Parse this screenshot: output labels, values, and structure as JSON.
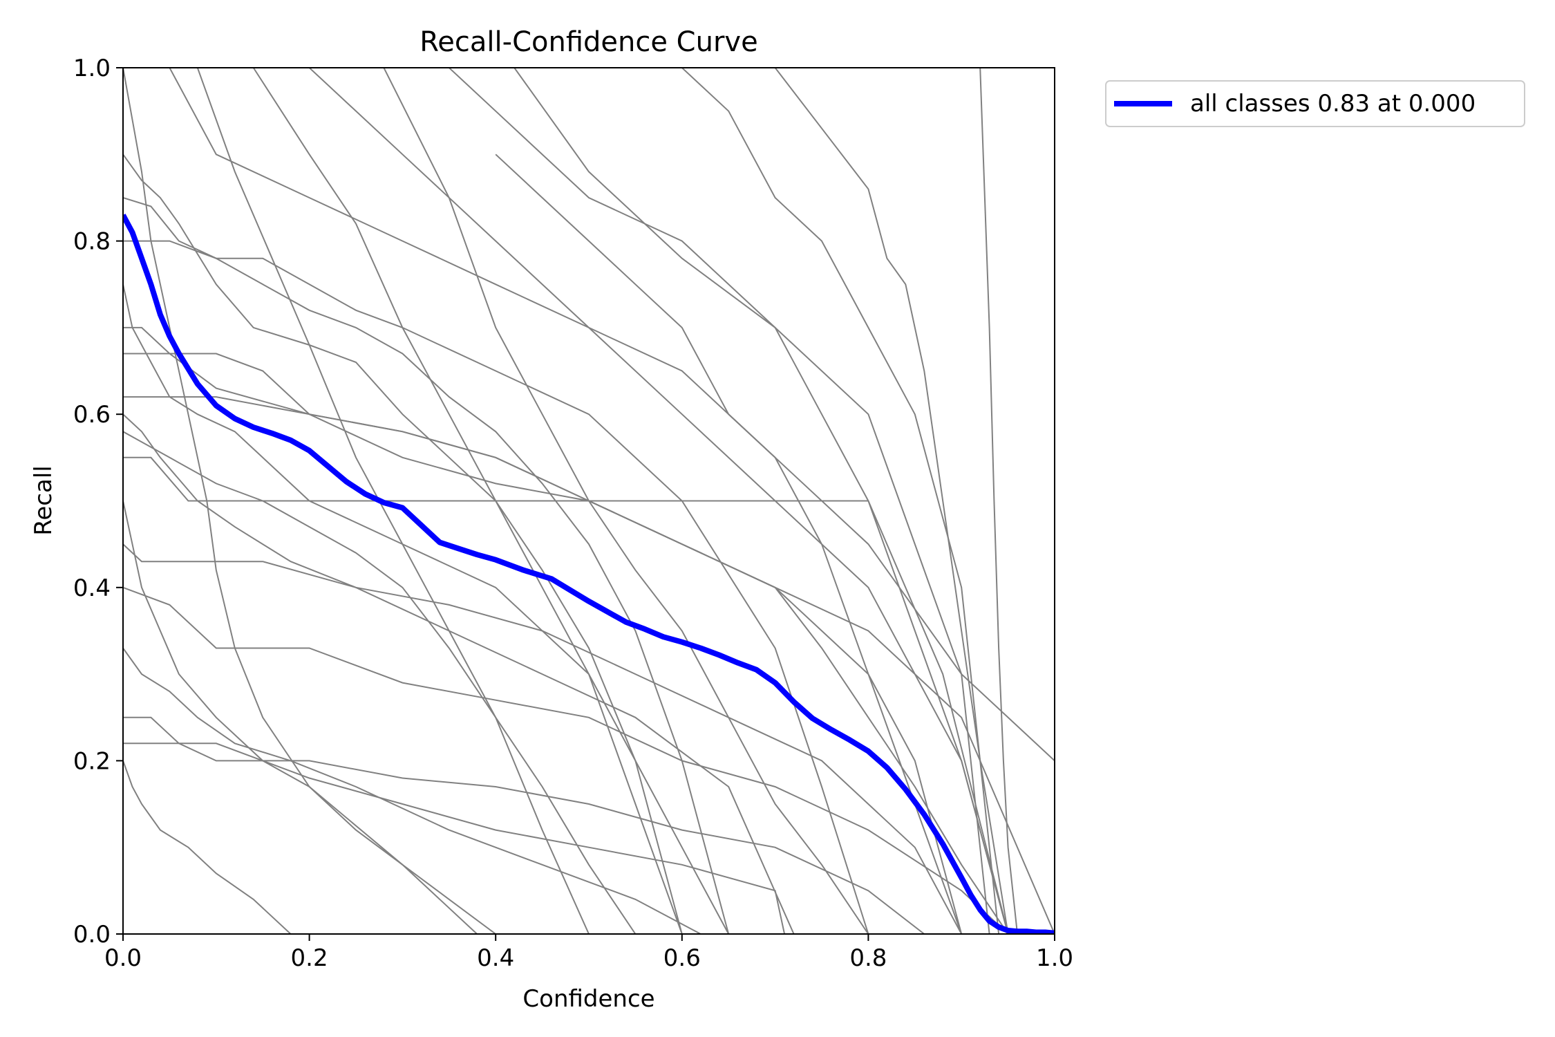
{
  "chart_data": {
    "type": "line",
    "title": "Recall-Confidence Curve",
    "xlabel": "Confidence",
    "ylabel": "Recall",
    "xlim": [
      0.0,
      1.0
    ],
    "ylim": [
      0.0,
      1.0
    ],
    "x_ticks": [
      "0.0",
      "0.2",
      "0.4",
      "0.6",
      "0.8",
      "1.0"
    ],
    "y_ticks": [
      "0.0",
      "0.2",
      "0.4",
      "0.6",
      "0.8",
      "1.0"
    ],
    "grid": false,
    "legend_position": "outside-top-right",
    "legend": [
      {
        "label": "all classes 0.83 at 0.000",
        "color": "#0000ff"
      }
    ],
    "colors": {
      "classes": "#808080",
      "all": "#0000ff"
    },
    "series": [
      {
        "name": "all classes 0.83 at 0.000",
        "color": "#0000ff",
        "x": [
          0.0,
          0.01,
          0.02,
          0.03,
          0.04,
          0.05,
          0.06,
          0.08,
          0.1,
          0.12,
          0.14,
          0.16,
          0.18,
          0.2,
          0.22,
          0.24,
          0.26,
          0.28,
          0.3,
          0.32,
          0.34,
          0.36,
          0.38,
          0.4,
          0.43,
          0.46,
          0.48,
          0.5,
          0.52,
          0.54,
          0.56,
          0.58,
          0.6,
          0.62,
          0.64,
          0.66,
          0.68,
          0.7,
          0.72,
          0.74,
          0.76,
          0.78,
          0.8,
          0.82,
          0.84,
          0.86,
          0.88,
          0.9,
          0.91,
          0.92,
          0.93,
          0.94,
          0.95,
          0.96,
          0.97,
          0.98,
          0.99,
          1.0
        ],
        "y": [
          0.83,
          0.81,
          0.78,
          0.75,
          0.715,
          0.69,
          0.67,
          0.635,
          0.61,
          0.595,
          0.585,
          0.578,
          0.57,
          0.558,
          0.54,
          0.522,
          0.508,
          0.498,
          0.492,
          0.472,
          0.452,
          0.445,
          0.438,
          0.432,
          0.42,
          0.41,
          0.397,
          0.384,
          0.372,
          0.36,
          0.352,
          0.343,
          0.337,
          0.33,
          0.322,
          0.313,
          0.305,
          0.29,
          0.268,
          0.249,
          0.236,
          0.224,
          0.211,
          0.192,
          0.167,
          0.138,
          0.104,
          0.065,
          0.045,
          0.028,
          0.015,
          0.008,
          0.004,
          0.003,
          0.003,
          0.002,
          0.002,
          0.001
        ]
      },
      {
        "x": [
          0.0,
          0.01,
          0.02,
          0.03,
          0.05,
          0.07,
          0.09,
          0.1,
          0.12,
          0.15,
          0.2,
          0.3,
          0.38,
          0.5,
          0.6
        ],
        "y": [
          1.0,
          0.94,
          0.88,
          0.8,
          0.7,
          0.6,
          0.5,
          0.42,
          0.33,
          0.25,
          0.17,
          0.08,
          0.0,
          0.0,
          0.0
        ]
      },
      {
        "x": [
          0.0,
          0.02,
          0.04,
          0.06,
          0.1,
          0.14,
          0.2,
          0.25,
          0.3,
          0.35,
          0.4,
          0.45,
          0.5,
          0.55,
          0.6
        ],
        "y": [
          0.9,
          0.87,
          0.85,
          0.82,
          0.75,
          0.7,
          0.68,
          0.66,
          0.6,
          0.55,
          0.5,
          0.4,
          0.3,
          0.15,
          0.0
        ]
      },
      {
        "x": [
          0.0,
          0.03,
          0.06,
          0.1,
          0.15,
          0.2,
          0.25,
          0.3,
          0.35,
          0.4,
          0.45,
          0.5,
          0.55,
          0.6,
          0.65
        ],
        "y": [
          0.85,
          0.84,
          0.8,
          0.78,
          0.75,
          0.72,
          0.7,
          0.67,
          0.62,
          0.58,
          0.52,
          0.45,
          0.35,
          0.2,
          0.0
        ]
      },
      {
        "x": [
          0.0,
          0.05,
          0.1,
          0.15,
          0.2,
          0.25,
          0.3,
          0.4,
          0.5,
          0.6,
          0.7,
          0.75,
          0.8
        ],
        "y": [
          0.8,
          0.8,
          0.78,
          0.78,
          0.75,
          0.72,
          0.7,
          0.65,
          0.6,
          0.5,
          0.33,
          0.17,
          0.0
        ]
      },
      {
        "x": [
          0.0,
          0.01,
          0.03,
          0.05,
          0.08,
          0.12,
          0.2,
          0.3,
          0.4,
          0.5,
          0.55,
          0.6
        ],
        "y": [
          0.75,
          0.7,
          0.66,
          0.62,
          0.6,
          0.58,
          0.5,
          0.45,
          0.4,
          0.3,
          0.2,
          0.0
        ]
      },
      {
        "x": [
          0.0,
          0.02,
          0.05,
          0.1,
          0.15,
          0.2,
          0.3,
          0.4,
          0.5,
          0.6,
          0.7,
          0.8,
          0.85,
          0.9
        ],
        "y": [
          0.7,
          0.7,
          0.67,
          0.67,
          0.65,
          0.6,
          0.58,
          0.55,
          0.5,
          0.45,
          0.4,
          0.3,
          0.2,
          0.0
        ]
      },
      {
        "x": [
          0.0,
          0.05,
          0.1,
          0.2,
          0.3,
          0.4,
          0.5,
          0.6,
          0.7,
          0.75,
          0.8,
          0.85,
          0.9,
          0.95
        ],
        "y": [
          0.67,
          0.67,
          0.63,
          0.6,
          0.55,
          0.52,
          0.5,
          0.45,
          0.4,
          0.33,
          0.25,
          0.17,
          0.08,
          0.0
        ]
      },
      {
        "x": [
          0.0,
          0.02,
          0.04,
          0.08,
          0.12,
          0.18,
          0.25,
          0.35,
          0.45,
          0.55,
          0.65,
          0.72
        ],
        "y": [
          0.6,
          0.58,
          0.55,
          0.5,
          0.47,
          0.43,
          0.4,
          0.35,
          0.3,
          0.25,
          0.17,
          0.0
        ]
      },
      {
        "x": [
          0.0,
          0.03,
          0.07,
          0.12,
          0.2,
          0.3,
          0.4,
          0.5,
          0.6,
          0.7,
          0.8,
          0.88,
          0.95
        ],
        "y": [
          0.55,
          0.55,
          0.5,
          0.5,
          0.5,
          0.5,
          0.5,
          0.5,
          0.5,
          0.5,
          0.5,
          0.3,
          0.0
        ]
      },
      {
        "x": [
          0.0,
          0.01,
          0.02,
          0.04,
          0.06,
          0.1,
          0.15,
          0.2,
          0.25,
          0.3,
          0.35,
          0.4
        ],
        "y": [
          0.5,
          0.45,
          0.4,
          0.35,
          0.3,
          0.25,
          0.2,
          0.17,
          0.12,
          0.08,
          0.04,
          0.0
        ]
      },
      {
        "x": [
          0.0,
          0.02,
          0.05,
          0.1,
          0.15,
          0.25,
          0.35,
          0.45,
          0.55,
          0.65,
          0.75,
          0.85,
          0.9
        ],
        "y": [
          0.45,
          0.43,
          0.43,
          0.43,
          0.43,
          0.4,
          0.38,
          0.35,
          0.3,
          0.25,
          0.2,
          0.1,
          0.0
        ]
      },
      {
        "x": [
          0.0,
          0.05,
          0.1,
          0.2,
          0.3,
          0.4,
          0.5,
          0.6,
          0.7,
          0.8,
          0.9,
          0.95
        ],
        "y": [
          0.4,
          0.38,
          0.33,
          0.33,
          0.29,
          0.27,
          0.25,
          0.2,
          0.17,
          0.12,
          0.05,
          0.0
        ]
      },
      {
        "x": [
          0.0,
          0.02,
          0.05,
          0.08,
          0.12,
          0.18,
          0.25,
          0.35,
          0.45,
          0.55,
          0.62
        ],
        "y": [
          0.33,
          0.3,
          0.28,
          0.25,
          0.22,
          0.2,
          0.17,
          0.12,
          0.08,
          0.04,
          0.0
        ]
      },
      {
        "x": [
          0.0,
          0.03,
          0.06,
          0.1,
          0.2,
          0.3,
          0.4,
          0.5,
          0.6,
          0.7,
          0.8,
          0.86
        ],
        "y": [
          0.25,
          0.25,
          0.22,
          0.2,
          0.2,
          0.18,
          0.17,
          0.15,
          0.12,
          0.1,
          0.05,
          0.0
        ]
      },
      {
        "x": [
          0.0,
          0.05,
          0.1,
          0.2,
          0.3,
          0.4,
          0.5,
          0.6,
          0.7,
          0.71
        ],
        "y": [
          0.22,
          0.22,
          0.22,
          0.18,
          0.15,
          0.12,
          0.1,
          0.08,
          0.05,
          0.0
        ]
      },
      {
        "x": [
          0.0,
          0.01,
          0.02,
          0.04,
          0.07,
          0.1,
          0.14,
          0.18
        ],
        "y": [
          0.2,
          0.17,
          0.15,
          0.12,
          0.1,
          0.07,
          0.04,
          0.0
        ]
      },
      {
        "x": [
          0.05,
          0.1,
          0.2,
          0.3,
          0.4,
          0.5,
          0.6,
          0.7,
          0.8,
          0.9,
          1.0
        ],
        "y": [
          1.0,
          0.9,
          0.85,
          0.8,
          0.75,
          0.7,
          0.65,
          0.55,
          0.45,
          0.3,
          0.2
        ]
      },
      {
        "x": [
          0.2,
          0.3,
          0.4,
          0.5,
          0.6,
          0.7,
          0.8,
          0.9,
          0.95
        ],
        "y": [
          1.0,
          0.9,
          0.8,
          0.7,
          0.6,
          0.5,
          0.4,
          0.2,
          0.0
        ]
      },
      {
        "x": [
          0.35,
          0.4,
          0.5,
          0.6,
          0.7,
          0.75,
          0.8,
          0.85,
          0.9,
          0.95
        ],
        "y": [
          1.0,
          0.95,
          0.85,
          0.8,
          0.7,
          0.6,
          0.5,
          0.35,
          0.2,
          0.0
        ]
      },
      {
        "x": [
          0.42,
          0.5,
          0.6,
          0.7,
          0.8,
          0.85,
          0.9,
          0.93
        ],
        "y": [
          1.0,
          0.88,
          0.78,
          0.7,
          0.6,
          0.45,
          0.3,
          0.0
        ]
      },
      {
        "x": [
          0.6,
          0.65,
          0.7,
          0.75,
          0.8,
          0.85,
          0.9,
          0.94
        ],
        "y": [
          1.0,
          0.95,
          0.85,
          0.8,
          0.7,
          0.6,
          0.4,
          0.0
        ]
      },
      {
        "x": [
          0.7,
          0.75,
          0.8,
          0.82,
          0.84,
          0.86,
          0.88,
          0.9,
          0.92,
          0.95
        ],
        "y": [
          1.0,
          0.93,
          0.86,
          0.78,
          0.75,
          0.65,
          0.5,
          0.35,
          0.2,
          0.0
        ]
      },
      {
        "x": [
          0.28,
          0.35,
          0.4,
          0.45,
          0.5,
          0.55,
          0.6,
          0.65,
          0.7,
          0.75,
          0.8
        ],
        "y": [
          1.0,
          0.85,
          0.7,
          0.6,
          0.5,
          0.42,
          0.35,
          0.25,
          0.15,
          0.08,
          0.0
        ]
      },
      {
        "x": [
          0.08,
          0.12,
          0.16,
          0.2,
          0.25,
          0.3,
          0.35,
          0.4,
          0.45,
          0.5
        ],
        "y": [
          1.0,
          0.88,
          0.78,
          0.68,
          0.55,
          0.45,
          0.35,
          0.25,
          0.12,
          0.0
        ]
      },
      {
        "x": [
          0.14,
          0.2,
          0.25,
          0.3,
          0.35,
          0.4,
          0.45,
          0.5,
          0.55,
          0.6,
          0.65
        ],
        "y": [
          1.0,
          0.9,
          0.82,
          0.7,
          0.6,
          0.5,
          0.42,
          0.33,
          0.2,
          0.1,
          0.0
        ]
      },
      {
        "x": [
          0.92,
          0.925,
          0.93,
          0.935,
          0.94,
          0.945,
          0.95,
          0.96
        ],
        "y": [
          1.0,
          0.85,
          0.7,
          0.5,
          0.33,
          0.2,
          0.1,
          0.0
        ]
      },
      {
        "x": [
          0.4,
          0.45,
          0.5,
          0.55,
          0.6,
          0.65,
          0.7,
          0.75,
          0.8,
          0.85,
          0.9
        ],
        "y": [
          0.9,
          0.85,
          0.8,
          0.75,
          0.7,
          0.6,
          0.55,
          0.45,
          0.3,
          0.15,
          0.0
        ]
      },
      {
        "x": [
          0.0,
          0.1,
          0.2,
          0.3,
          0.4,
          0.5,
          0.6,
          0.7,
          0.8,
          0.9,
          1.0
        ],
        "y": [
          0.62,
          0.62,
          0.6,
          0.58,
          0.55,
          0.5,
          0.45,
          0.4,
          0.35,
          0.25,
          0.0
        ]
      },
      {
        "x": [
          0.0,
          0.05,
          0.1,
          0.15,
          0.2,
          0.25,
          0.3,
          0.35,
          0.4,
          0.45,
          0.5,
          0.55
        ],
        "y": [
          0.58,
          0.55,
          0.52,
          0.5,
          0.47,
          0.44,
          0.4,
          0.33,
          0.25,
          0.17,
          0.08,
          0.0
        ]
      }
    ]
  }
}
